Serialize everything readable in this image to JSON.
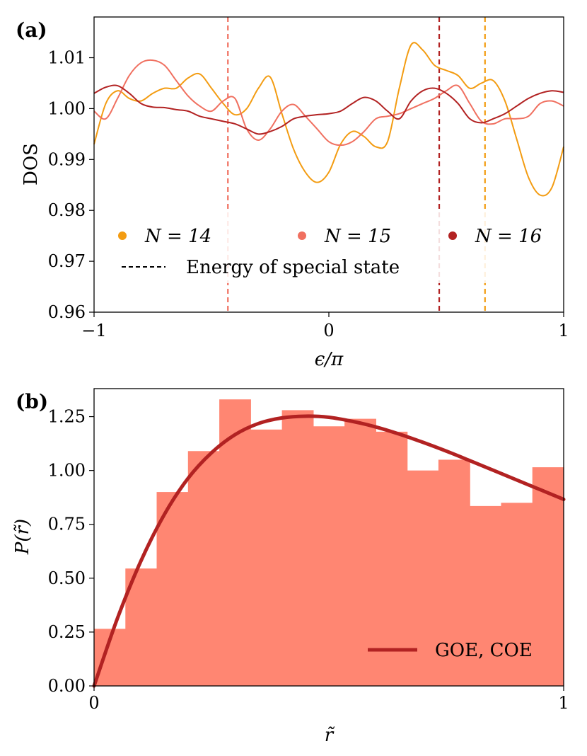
{
  "panel_labels": [
    "(a)",
    "(b)"
  ],
  "chart_data": [
    {
      "panel": "(a)",
      "type": "line",
      "xlabel": "ϵ/π",
      "ylabel": "DOS",
      "xlim": [
        -1,
        1
      ],
      "ylim": [
        0.96,
        1.018
      ],
      "xticks": [
        -1,
        0,
        1
      ],
      "xtick_labels": [
        "−1",
        "0",
        "1"
      ],
      "yticks": [
        0.96,
        0.97,
        0.98,
        0.99,
        1.0,
        1.01
      ],
      "ytick_labels": [
        "0.96",
        "0.97",
        "0.98",
        "0.99",
        "1.00",
        "1.01"
      ],
      "grid": false,
      "legend_placement": "lower-center",
      "legend": {
        "series_labels": [
          "N = 14",
          "N = 15",
          "N = 16"
        ],
        "special_label": "Energy of special state"
      },
      "series": [
        {
          "name": "N = 14",
          "color": "#f39c12",
          "x": [
            -1,
            -0.95,
            -0.9,
            -0.85,
            -0.8,
            -0.75,
            -0.7,
            -0.65,
            -0.6,
            -0.55,
            -0.5,
            -0.45,
            -0.4,
            -0.35,
            -0.3,
            -0.25,
            -0.2,
            -0.15,
            -0.1,
            -0.05,
            0,
            0.05,
            0.1,
            0.15,
            0.2,
            0.25,
            0.3,
            0.35,
            0.4,
            0.45,
            0.5,
            0.55,
            0.6,
            0.65,
            0.7,
            0.75,
            0.8,
            0.85,
            0.9,
            0.95,
            1
          ],
          "y": [
            0.993,
            1.001,
            1.0035,
            1.002,
            1.0015,
            1.003,
            1.004,
            1.004,
            1.006,
            1.0068,
            1.004,
            1.001,
            0.9988,
            1.0,
            1.004,
            1.0062,
            0.999,
            0.992,
            0.9875,
            0.9855,
            0.9875,
            0.993,
            0.9955,
            0.9945,
            0.9925,
            0.9935,
            1.004,
            1.0125,
            1.0115,
            1.0085,
            1.0075,
            1.0065,
            1.004,
            1.005,
            1.0055,
            1.0015,
            0.994,
            0.9865,
            0.983,
            0.9845,
            0.9925
          ],
          "special_energy": 0.665
        },
        {
          "name": "N = 15",
          "color": "#f07060",
          "x": [
            -1,
            -0.95,
            -0.9,
            -0.85,
            -0.8,
            -0.75,
            -0.7,
            -0.65,
            -0.6,
            -0.55,
            -0.5,
            -0.45,
            -0.4,
            -0.35,
            -0.3,
            -0.25,
            -0.2,
            -0.15,
            -0.1,
            -0.05,
            0,
            0.05,
            0.1,
            0.15,
            0.2,
            0.25,
            0.3,
            0.35,
            0.4,
            0.45,
            0.5,
            0.55,
            0.6,
            0.65,
            0.7,
            0.75,
            0.8,
            0.85,
            0.9,
            0.95,
            1
          ],
          "y": [
            0.9995,
            0.998,
            1.002,
            1.0065,
            1.009,
            1.0095,
            1.0085,
            1.0055,
            1.0025,
            1.0005,
            0.9995,
            1.0015,
            1.002,
            0.996,
            0.9938,
            0.996,
            0.9995,
            1.0008,
            0.9985,
            0.996,
            0.9935,
            0.9928,
            0.9935,
            0.9955,
            0.998,
            0.9985,
            0.999,
            1.0,
            1.001,
            1.002,
            1.0035,
            1.0045,
            1.001,
            0.9975,
            0.997,
            0.998,
            0.998,
            0.9985,
            1.001,
            1.0015,
            1.0005
          ],
          "special_energy": -0.43
        },
        {
          "name": "N = 16",
          "color": "#b22222",
          "x": [
            -1,
            -0.95,
            -0.9,
            -0.85,
            -0.8,
            -0.75,
            -0.7,
            -0.65,
            -0.6,
            -0.55,
            -0.5,
            -0.45,
            -0.4,
            -0.35,
            -0.3,
            -0.25,
            -0.2,
            -0.15,
            -0.1,
            -0.05,
            0,
            0.05,
            0.1,
            0.15,
            0.2,
            0.25,
            0.3,
            0.35,
            0.4,
            0.45,
            0.5,
            0.55,
            0.6,
            0.65,
            0.7,
            0.75,
            0.8,
            0.85,
            0.9,
            0.95,
            1
          ],
          "y": [
            1.003,
            1.0042,
            1.0045,
            1.003,
            1.001,
            1.0003,
            1.0002,
            0.9998,
            0.9995,
            0.9985,
            0.998,
            0.9975,
            0.997,
            0.996,
            0.995,
            0.9955,
            0.9965,
            0.998,
            0.9985,
            0.9988,
            0.999,
            0.9995,
            1.001,
            1.0022,
            1.0015,
            0.9995,
            0.998,
            1.0015,
            1.0035,
            1.004,
            1.003,
            1.001,
            0.998,
            0.9972,
            0.998,
            0.999,
            1.0005,
            1.002,
            1.003,
            1.0035,
            1.0032
          ],
          "special_energy": 0.47
        }
      ]
    },
    {
      "panel": "(b)",
      "type": "bar",
      "xlabel": "r̃",
      "ylabel": "P(r̃)",
      "xlim": [
        0,
        1
      ],
      "ylim": [
        0,
        1.38
      ],
      "xticks": [
        0,
        1
      ],
      "xtick_labels": [
        "0",
        "1"
      ],
      "yticks": [
        0,
        0.25,
        0.5,
        0.75,
        1.0,
        1.25
      ],
      "ytick_labels": [
        "0.00",
        "0.25",
        "0.50",
        "0.75",
        "1.00",
        "1.25"
      ],
      "grid": false,
      "legend_placement": "lower-right",
      "histogram": {
        "bin_edges": [
          0,
          0.0667,
          0.1333,
          0.2,
          0.2667,
          0.3333,
          0.4,
          0.4667,
          0.5333,
          0.6,
          0.6667,
          0.7333,
          0.8,
          0.8667,
          0.9333,
          1
        ],
        "values": [
          0.265,
          0.545,
          0.9,
          1.09,
          1.33,
          1.19,
          1.28,
          1.205,
          1.24,
          1.18,
          1.0,
          1.05,
          0.835,
          0.85,
          1.015
        ],
        "color": "#ff8672"
      },
      "series": [
        {
          "name": "GOE, COE",
          "color": "#b22222",
          "x": [
            0,
            0.05,
            0.1,
            0.15,
            0.2,
            0.25,
            0.3,
            0.35,
            0.4,
            0.45,
            0.5,
            0.55,
            0.6,
            0.65,
            0.7,
            0.75,
            0.8,
            0.85,
            0.9,
            0.95,
            1
          ],
          "y": [
            0.0,
            0.315,
            0.581,
            0.797,
            0.963,
            1.082,
            1.166,
            1.218,
            1.244,
            1.252,
            1.247,
            1.228,
            1.202,
            1.169,
            1.131,
            1.09,
            1.046,
            1.001,
            0.956,
            0.911,
            0.866
          ]
        }
      ]
    }
  ]
}
